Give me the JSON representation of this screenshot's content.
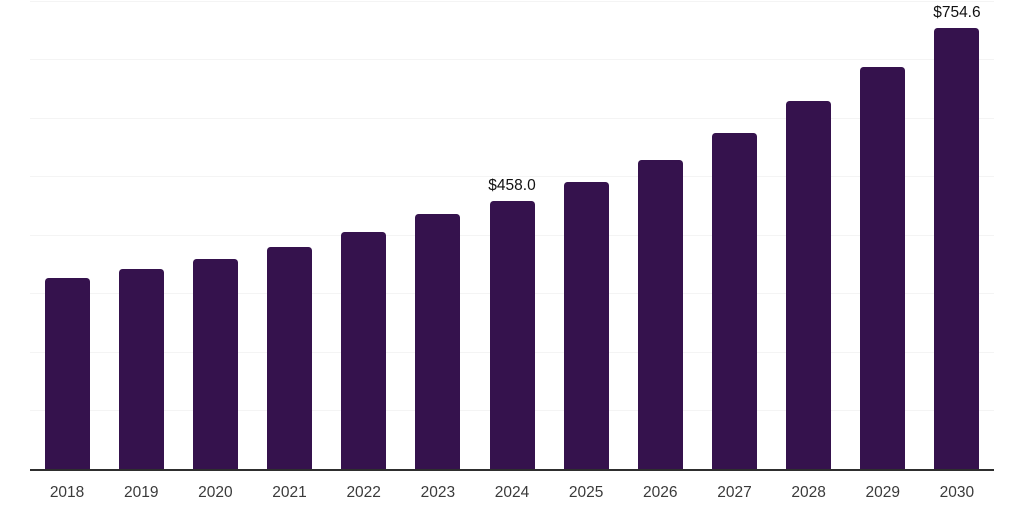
{
  "page": {
    "background_color": "#ffffff"
  },
  "chart_data": {
    "type": "bar",
    "title": "",
    "xlabel": "",
    "ylabel": "",
    "categories": [
      "2018",
      "2019",
      "2020",
      "2021",
      "2022",
      "2023",
      "2024",
      "2025",
      "2026",
      "2027",
      "2028",
      "2029",
      "2030"
    ],
    "values": [
      327,
      342,
      359,
      380,
      405,
      436,
      458.0,
      491,
      529,
      575,
      629,
      687,
      754.6
    ],
    "data_labels": {
      "2024": "$458.0",
      "2030": "$754.6"
    },
    "ylim": [
      0,
      800
    ],
    "gridline_step": 100,
    "grid": true,
    "legend": false,
    "y_axis_tick_labels_visible": false,
    "bar_color": "#35124d",
    "gridline_color": "#f4f4f4",
    "axis_line_color": "#2e2e2e",
    "tick_label_color": "#3a3a3a",
    "data_label_color": "#111111"
  }
}
